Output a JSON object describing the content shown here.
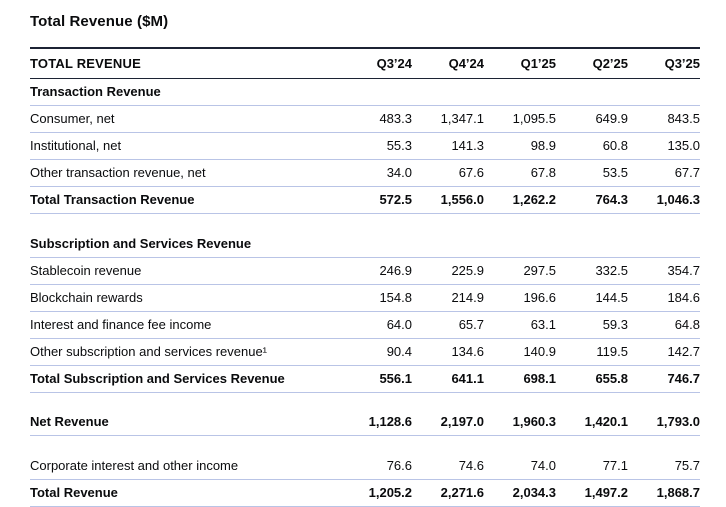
{
  "page": {
    "title": "Total Revenue ($M)"
  },
  "theme": {
    "dark_rule": "#1c2334",
    "light_rule": "#b9c4e6",
    "text_color": "#0a0b0d",
    "background": "#ffffff"
  },
  "table": {
    "header": {
      "label": "TOTAL REVENUE",
      "columns": [
        "Q3’24",
        "Q4’24",
        "Q1’25",
        "Q2’25",
        "Q3’25"
      ]
    },
    "rows": [
      {
        "type": "section",
        "label": "Transaction Revenue",
        "values": [
          "",
          "",
          "",
          "",
          ""
        ]
      },
      {
        "type": "data",
        "label": "Consumer, net",
        "values": [
          "483.3",
          "1,347.1",
          "1,095.5",
          "649.9",
          "843.5"
        ]
      },
      {
        "type": "data",
        "label": "Institutional, net",
        "values": [
          "55.3",
          "141.3",
          "98.9",
          "60.8",
          "135.0"
        ]
      },
      {
        "type": "data",
        "label": "Other transaction revenue, net",
        "values": [
          "34.0",
          "67.6",
          "67.8",
          "53.5",
          "67.7"
        ]
      },
      {
        "type": "total",
        "label": "Total Transaction Revenue",
        "values": [
          "572.5",
          "1,556.0",
          "1,262.2",
          "764.3",
          "1,046.3"
        ]
      },
      {
        "type": "spacer"
      },
      {
        "type": "section",
        "label": "Subscription and Services Revenue",
        "values": [
          "",
          "",
          "",
          "",
          ""
        ]
      },
      {
        "type": "data",
        "label": "Stablecoin revenue",
        "values": [
          "246.9",
          "225.9",
          "297.5",
          "332.5",
          "354.7"
        ]
      },
      {
        "type": "data",
        "label": "Blockchain rewards",
        "values": [
          "154.8",
          "214.9",
          "196.6",
          "144.5",
          "184.6"
        ]
      },
      {
        "type": "data",
        "label": "Interest and finance fee income",
        "values": [
          "64.0",
          "65.7",
          "63.1",
          "59.3",
          "64.8"
        ]
      },
      {
        "type": "data",
        "label": "Other subscription and services revenue¹",
        "values": [
          "90.4",
          "134.6",
          "140.9",
          "119.5",
          "142.7"
        ]
      },
      {
        "type": "total",
        "label": "Total Subscription and Services Revenue",
        "values": [
          "556.1",
          "641.1",
          "698.1",
          "655.8",
          "746.7"
        ]
      },
      {
        "type": "spacer"
      },
      {
        "type": "total",
        "label": "Net Revenue",
        "values": [
          "1,128.6",
          "2,197.0",
          "1,960.3",
          "1,420.1",
          "1,793.0"
        ]
      },
      {
        "type": "spacer"
      },
      {
        "type": "data",
        "label": "Corporate interest and other income",
        "values": [
          "76.6",
          "74.6",
          "74.0",
          "77.1",
          "75.7"
        ]
      },
      {
        "type": "total",
        "label": "Total Revenue",
        "values": [
          "1,205.2",
          "2,271.6",
          "2,034.3",
          "1,497.2",
          "1,868.7"
        ]
      }
    ]
  }
}
